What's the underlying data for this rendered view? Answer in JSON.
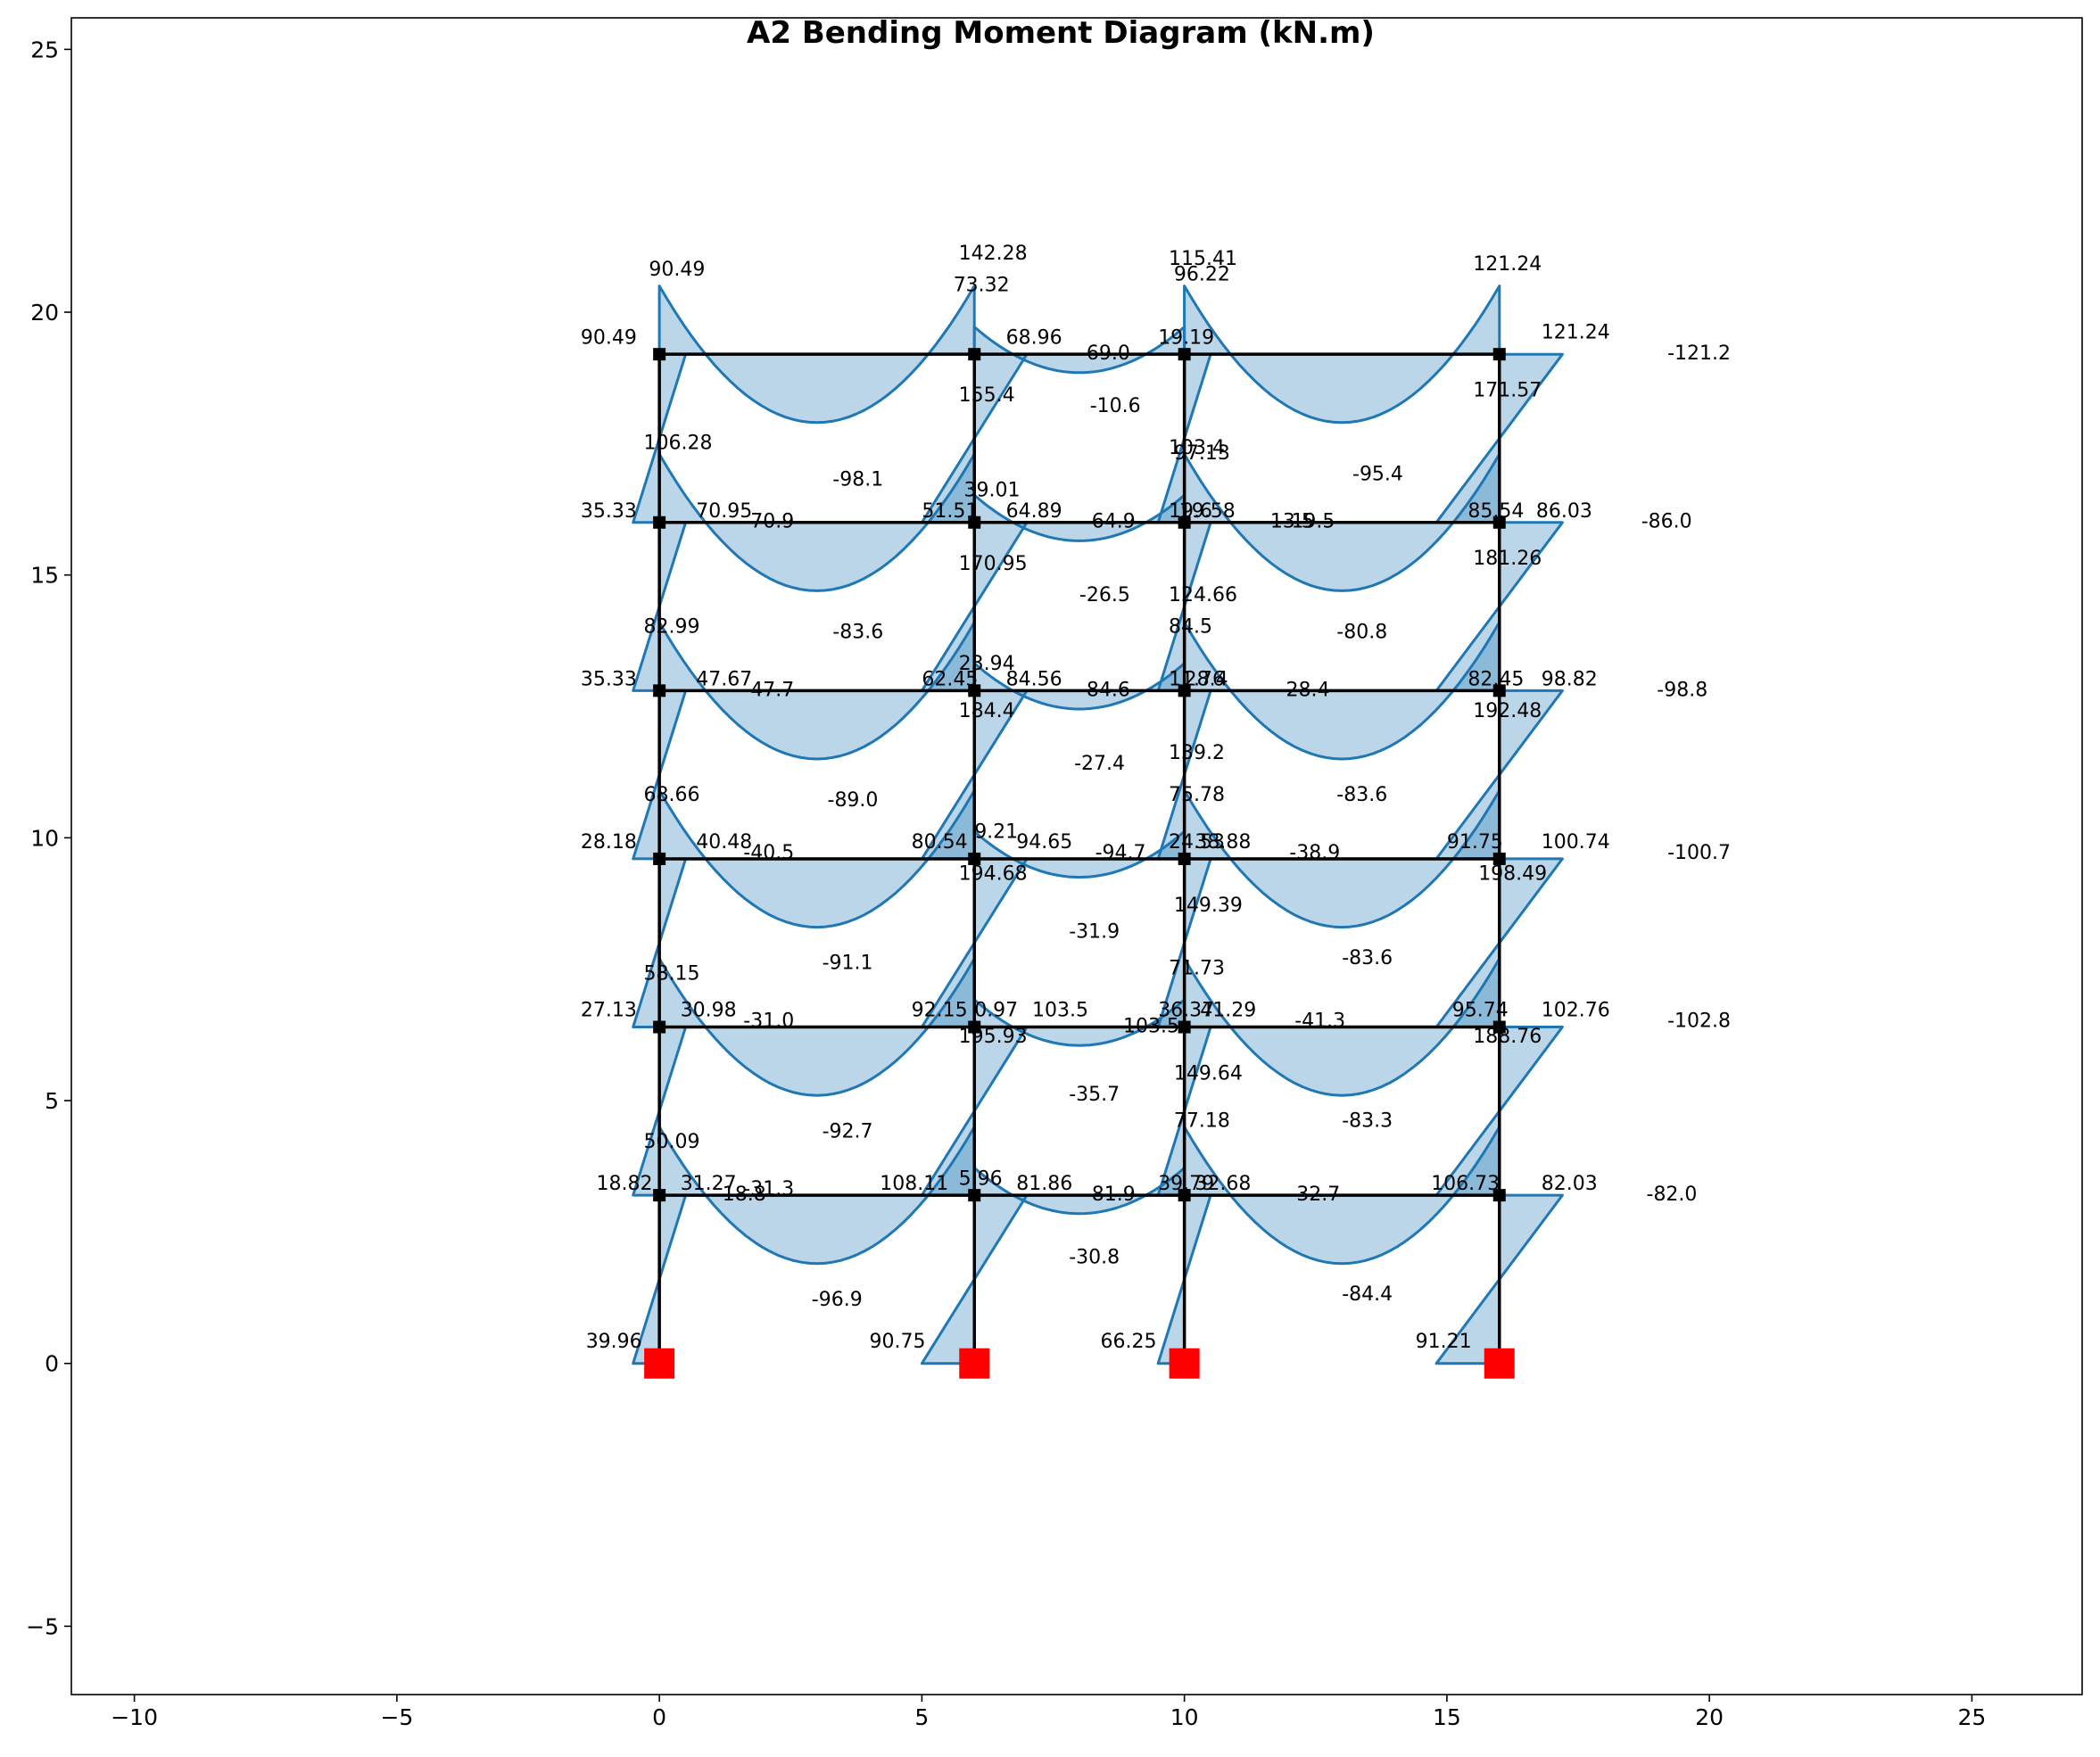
{
  "title": "A2 Bending Moment Diagram (kN.m)",
  "axes": {
    "xlim": [
      -11.2,
      27.1
    ],
    "ylim": [
      -6.3,
      25.6
    ],
    "xticks": [
      "−10",
      "−5",
      "0",
      "5",
      "10",
      "15",
      "20",
      "25"
    ],
    "yticks": [
      "25",
      "20",
      "15",
      "10",
      "5",
      "0",
      "−5"
    ],
    "xtick_values": [
      -10,
      -5,
      0,
      5,
      10,
      15,
      20,
      25
    ],
    "ytick_values": [
      25,
      20,
      15,
      10,
      5,
      0,
      -5
    ]
  },
  "colors": {
    "diagram": "#1f77b4",
    "frame": "#000000",
    "support": "#ff0000"
  },
  "chart_data": {
    "type": "bending moment diagram",
    "frame": {
      "column_x": [
        0,
        6,
        10,
        16
      ],
      "floor_y": [
        0,
        3.2,
        6.4,
        9.6,
        12.8,
        16.0,
        19.2
      ],
      "supports": "fixed base at x = 0, 6, 10, 16"
    },
    "moment_labels": [
      {
        "text": "90.49",
        "x": -0.2,
        "y": 20.7
      },
      {
        "text": "142.28",
        "x": 5.7,
        "y": 21.0
      },
      {
        "text": "115.41",
        "x": 9.7,
        "y": 20.9
      },
      {
        "text": "96.22",
        "x": 9.8,
        "y": 20.6
      },
      {
        "text": "121.24",
        "x": 15.5,
        "y": 20.8
      },
      {
        "text": "73.32",
        "x": 5.6,
        "y": 20.4
      },
      {
        "text": "90.49",
        "x": -1.5,
        "y": 19.4
      },
      {
        "text": "68.96",
        "x": 6.6,
        "y": 19.4
      },
      {
        "text": "-69.0",
        "x": 8.0,
        "y": 19.1
      },
      {
        "text": "19.19",
        "x": 9.5,
        "y": 19.4
      },
      {
        "text": "121.24",
        "x": 16.8,
        "y": 19.5
      },
      {
        "text": "-121.2",
        "x": 19.2,
        "y": 19.1
      },
      {
        "text": "155.4",
        "x": 5.7,
        "y": 18.3
      },
      {
        "text": "171.57",
        "x": 15.5,
        "y": 18.4
      },
      {
        "text": "-10.6",
        "x": 8.2,
        "y": 18.1
      },
      {
        "text": "106.28",
        "x": -0.3,
        "y": 17.4
      },
      {
        "text": "103.4",
        "x": 9.7,
        "y": 17.3
      },
      {
        "text": "97.13",
        "x": 9.8,
        "y": 17.2
      },
      {
        "text": "-98.1",
        "x": 3.3,
        "y": 16.7
      },
      {
        "text": "-95.4",
        "x": 13.2,
        "y": 16.8
      },
      {
        "text": "39.01",
        "x": 5.8,
        "y": 16.5
      },
      {
        "text": "35.33",
        "x": -1.5,
        "y": 16.1
      },
      {
        "text": "70.95",
        "x": 0.7,
        "y": 16.1
      },
      {
        "text": "-70.9",
        "x": 1.6,
        "y": 15.9
      },
      {
        "text": "51.51",
        "x": 5.0,
        "y": 16.1
      },
      {
        "text": "64.89",
        "x": 6.6,
        "y": 16.1
      },
      {
        "text": "-64.9",
        "x": 8.1,
        "y": 15.9
      },
      {
        "text": "19.58",
        "x": 9.9,
        "y": 16.1
      },
      {
        "text": "19.6",
        "x": 9.7,
        "y": 16.1
      },
      {
        "text": "-13.5",
        "x": 11.5,
        "y": 15.9
      },
      {
        "text": "-19.5",
        "x": 11.9,
        "y": 15.9
      },
      {
        "text": "85.54",
        "x": 15.4,
        "y": 16.1
      },
      {
        "text": "86.03",
        "x": 16.7,
        "y": 16.1
      },
      {
        "text": "-86.0",
        "x": 18.7,
        "y": 15.9
      },
      {
        "text": "170.95",
        "x": 5.7,
        "y": 15.1
      },
      {
        "text": "181.26",
        "x": 15.5,
        "y": 15.2
      },
      {
        "text": "-26.5",
        "x": 8.0,
        "y": 14.5
      },
      {
        "text": "124.66",
        "x": 9.7,
        "y": 14.5
      },
      {
        "text": "84.5",
        "x": 9.7,
        "y": 13.9
      },
      {
        "text": "82.99",
        "x": -0.3,
        "y": 13.9
      },
      {
        "text": "-83.6",
        "x": 3.3,
        "y": 13.8
      },
      {
        "text": "-80.8",
        "x": 12.9,
        "y": 13.8
      },
      {
        "text": "23.94",
        "x": 5.7,
        "y": 13.2
      },
      {
        "text": "35.33",
        "x": -1.5,
        "y": 12.9
      },
      {
        "text": "47.67",
        "x": 0.7,
        "y": 12.9
      },
      {
        "text": "-47.7",
        "x": 1.6,
        "y": 12.7
      },
      {
        "text": "62.45",
        "x": 5.0,
        "y": 12.9
      },
      {
        "text": "84.56",
        "x": 6.6,
        "y": 12.9
      },
      {
        "text": "-84.6",
        "x": 8.0,
        "y": 12.7
      },
      {
        "text": "11.76",
        "x": 9.7,
        "y": 12.9
      },
      {
        "text": "28.4",
        "x": 10.0,
        "y": 12.9
      },
      {
        "text": "-28.4",
        "x": 11.8,
        "y": 12.7
      },
      {
        "text": "82.45",
        "x": 15.4,
        "y": 12.9
      },
      {
        "text": "98.82",
        "x": 16.8,
        "y": 12.9
      },
      {
        "text": "-98.8",
        "x": 19.0,
        "y": 12.7
      },
      {
        "text": "184.4",
        "x": 5.7,
        "y": 12.3
      },
      {
        "text": "192.48",
        "x": 15.5,
        "y": 12.3
      },
      {
        "text": "139.2",
        "x": 9.7,
        "y": 11.5
      },
      {
        "text": "-27.4",
        "x": 7.9,
        "y": 11.3
      },
      {
        "text": "75.78",
        "x": 9.7,
        "y": 10.7
      },
      {
        "text": "68.66",
        "x": -0.3,
        "y": 10.7
      },
      {
        "text": "-89.0",
        "x": 3.2,
        "y": 10.6
      },
      {
        "text": "-83.6",
        "x": 12.9,
        "y": 10.7
      },
      {
        "text": "9.21",
        "x": 6.0,
        "y": 10.0
      },
      {
        "text": "28.18",
        "x": -1.5,
        "y": 9.8
      },
      {
        "text": "40.48",
        "x": 0.7,
        "y": 9.8
      },
      {
        "text": "-40.5",
        "x": 1.6,
        "y": 9.6
      },
      {
        "text": "80.54",
        "x": 4.8,
        "y": 9.8
      },
      {
        "text": "94.65",
        "x": 6.8,
        "y": 9.8
      },
      {
        "text": "-94.7",
        "x": 8.3,
        "y": 9.6
      },
      {
        "text": "24.53",
        "x": 9.7,
        "y": 9.8
      },
      {
        "text": "38.88",
        "x": 10.2,
        "y": 9.8
      },
      {
        "text": "-38.9",
        "x": 12.0,
        "y": 9.6
      },
      {
        "text": "91.75",
        "x": 15.0,
        "y": 9.8
      },
      {
        "text": "100.74",
        "x": 16.8,
        "y": 9.8
      },
      {
        "text": "-100.7",
        "x": 19.2,
        "y": 9.6
      },
      {
        "text": "194.68",
        "x": 5.7,
        "y": 9.2
      },
      {
        "text": "198.49",
        "x": 15.6,
        "y": 9.2
      },
      {
        "text": "149.39",
        "x": 9.8,
        "y": 8.6
      },
      {
        "text": "-31.9",
        "x": 7.8,
        "y": 8.1
      },
      {
        "text": "71.73",
        "x": 9.7,
        "y": 7.4
      },
      {
        "text": "58.15",
        "x": -0.3,
        "y": 7.3
      },
      {
        "text": "-91.1",
        "x": 3.1,
        "y": 7.5
      },
      {
        "text": "-83.6",
        "x": 13.0,
        "y": 7.6
      },
      {
        "text": "27.13",
        "x": -1.5,
        "y": 6.6
      },
      {
        "text": "30.98",
        "x": 0.4,
        "y": 6.6
      },
      {
        "text": "-31.0",
        "x": 1.6,
        "y": 6.4
      },
      {
        "text": "92.15",
        "x": 4.8,
        "y": 6.6
      },
      {
        "text": "0.97",
        "x": 6.0,
        "y": 6.6
      },
      {
        "text": "103.5",
        "x": 7.1,
        "y": 6.6
      },
      {
        "text": "-103.5",
        "x": 8.7,
        "y": 6.3
      },
      {
        "text": "36.37",
        "x": 9.5,
        "y": 6.6
      },
      {
        "text": "41.29",
        "x": 10.3,
        "y": 6.6
      },
      {
        "text": "-41.3",
        "x": 12.1,
        "y": 6.4
      },
      {
        "text": "95.74",
        "x": 15.1,
        "y": 6.6
      },
      {
        "text": "102.76",
        "x": 16.8,
        "y": 6.6
      },
      {
        "text": "-102.8",
        "x": 19.2,
        "y": 6.4
      },
      {
        "text": "195.93",
        "x": 5.7,
        "y": 6.1
      },
      {
        "text": "188.76",
        "x": 15.5,
        "y": 6.1
      },
      {
        "text": "149.64",
        "x": 9.8,
        "y": 5.4
      },
      {
        "text": "-35.7",
        "x": 7.8,
        "y": 5.0
      },
      {
        "text": "77.18",
        "x": 9.8,
        "y": 4.5
      },
      {
        "text": "50.09",
        "x": -0.3,
        "y": 4.1
      },
      {
        "text": "-92.7",
        "x": 3.1,
        "y": 4.3
      },
      {
        "text": "-83.3",
        "x": 13.0,
        "y": 4.5
      },
      {
        "text": "18.82",
        "x": -1.2,
        "y": 3.3
      },
      {
        "text": "31.27",
        "x": 0.4,
        "y": 3.3
      },
      {
        "text": "-31.3",
        "x": 1.6,
        "y": 3.2
      },
      {
        "text": "18.8",
        "x": 1.2,
        "y": 3.1
      },
      {
        "text": "108.11",
        "x": 4.2,
        "y": 3.3
      },
      {
        "text": "5.96",
        "x": 5.7,
        "y": 3.4
      },
      {
        "text": "81.86",
        "x": 6.8,
        "y": 3.3
      },
      {
        "text": "-81.9",
        "x": 8.1,
        "y": 3.1
      },
      {
        "text": "39.79",
        "x": 9.5,
        "y": 3.3
      },
      {
        "text": "32.68",
        "x": 10.2,
        "y": 3.3
      },
      {
        "text": "-32.7",
        "x": 12.0,
        "y": 3.1
      },
      {
        "text": "106.73",
        "x": 14.7,
        "y": 3.3
      },
      {
        "text": "82.03",
        "x": 16.8,
        "y": 3.3
      },
      {
        "text": "-82.0",
        "x": 18.8,
        "y": 3.1
      },
      {
        "text": "-30.8",
        "x": 7.8,
        "y": 1.9
      },
      {
        "text": "-96.9",
        "x": 2.9,
        "y": 1.1
      },
      {
        "text": "-84.4",
        "x": 13.0,
        "y": 1.2
      },
      {
        "text": "39.96",
        "x": -1.4,
        "y": 0.3
      },
      {
        "text": "90.75",
        "x": 4.0,
        "y": 0.3
      },
      {
        "text": "66.25",
        "x": 8.4,
        "y": 0.3
      },
      {
        "text": "91.21",
        "x": 14.4,
        "y": 0.3
      }
    ]
  }
}
